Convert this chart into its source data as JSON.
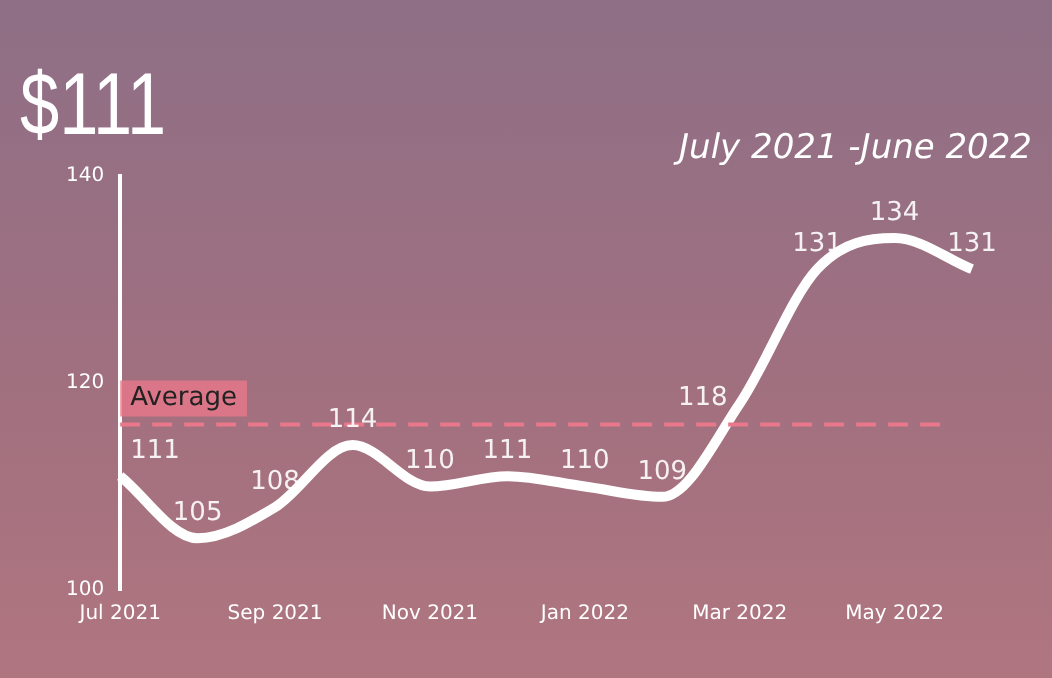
{
  "chart_data": {
    "type": "line",
    "title": "$111",
    "subtitle": "July 2021 -June 2022",
    "categories": [
      "Jul 2021",
      null,
      "Sep 2021",
      null,
      "Nov 2021",
      null,
      "Jan 2022",
      null,
      "Mar 2022",
      null,
      "May 2022",
      null
    ],
    "series": [
      {
        "type": "line",
        "color": "#ffffff",
        "values": [
          111,
          105,
          108,
          114,
          110,
          111,
          110,
          109,
          118,
          131,
          134,
          131
        ]
      }
    ],
    "ylim": [
      100,
      140
    ],
    "yticks": [
      100,
      120,
      140
    ],
    "grid": false,
    "legend": false,
    "marker": "none",
    "data_labels": true,
    "ref_lines": [
      {
        "axis": "y",
        "value": 116,
        "label": "Average",
        "color": "#e8788a",
        "line_style": "dashed"
      }
    ]
  }
}
